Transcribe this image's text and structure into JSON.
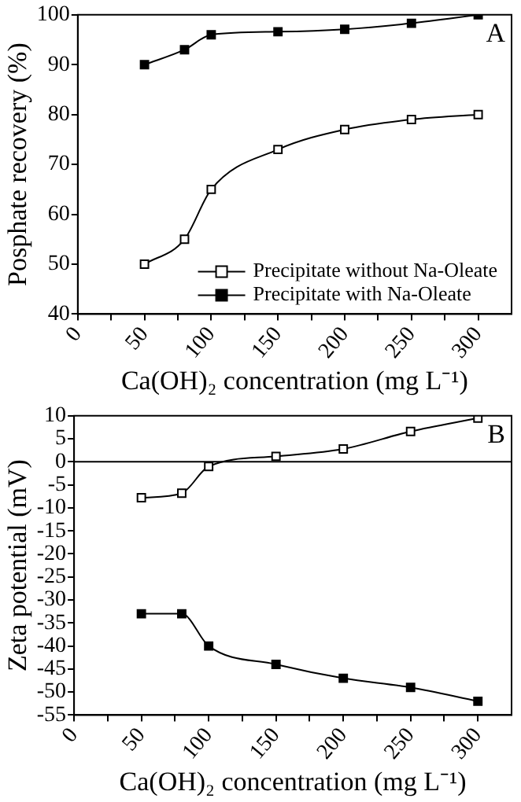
{
  "chart_data": [
    {
      "type": "line",
      "xlabel": "Ca(OH)₂ concentration (mg L⁻¹)",
      "ylabel": "Posphate recovery (%)",
      "x": [
        50,
        80,
        100,
        150,
        200,
        250,
        300
      ],
      "series": [
        {
          "name": "Precipitate without Na-Oleate",
          "color": "#000000",
          "values": [
            50,
            55,
            65,
            73,
            77,
            79,
            80
          ]
        },
        {
          "name": "Precipitate with Na-Oleate",
          "color": "#000000",
          "values": [
            90,
            93,
            96,
            96.6,
            97.1,
            98.3,
            100
          ]
        }
      ],
      "xlim": [
        0,
        325
      ],
      "xticks": [
        0,
        {
          "value": 25,
          "label": null
        },
        50,
        {
          "value": 75,
          "label": null
        },
        100,
        {
          "value": 125,
          "label": null
        },
        150,
        {
          "value": 175,
          "label": null
        },
        200,
        {
          "value": 225,
          "label": null
        },
        250,
        {
          "value": 275,
          "label": null
        },
        300
      ],
      "ylim": [
        40,
        100
      ],
      "yticks": [
        40,
        50,
        60,
        70,
        80,
        90,
        100
      ],
      "grid": false,
      "legend": "bottom right",
      "marker": "square",
      "line_style": "solid",
      "annotations": [
        "A"
      ]
    },
    {
      "type": "line",
      "xlabel": "Ca(OH)₂ concentration (mg L⁻¹)",
      "ylabel": "Zeta potential (mV)",
      "x": [
        50,
        80,
        100,
        150,
        200,
        250,
        300
      ],
      "series": [
        {
          "color": "#000000",
          "values": [
            -7.8,
            -6.8,
            -1,
            1.2,
            2.8,
            6.6,
            9.5
          ]
        },
        {
          "color": "#000000",
          "values": [
            -33,
            -33,
            -40,
            -44,
            -47,
            -49,
            -52
          ]
        }
      ],
      "xlim": [
        0,
        325
      ],
      "xticks": [
        0,
        {
          "value": 25,
          "label": null
        },
        50,
        {
          "value": 75,
          "label": null
        },
        100,
        {
          "value": 125,
          "label": null
        },
        150,
        {
          "value": 175,
          "label": null
        },
        200,
        {
          "value": 225,
          "label": null
        },
        250,
        {
          "value": 275,
          "label": null
        },
        300
      ],
      "ylim": [
        -55,
        10
      ],
      "yticks": [
        -55,
        -50,
        -45,
        -40,
        -35,
        -30,
        -25,
        -20,
        -15,
        -10,
        -5,
        0,
        5,
        10
      ],
      "grid": false,
      "legend": false,
      "marker": "square",
      "line_style": "solid",
      "ref_lines": [
        {
          "axis": "y",
          "value": 0,
          "color": "#000000"
        }
      ],
      "annotations": [
        "B"
      ]
    }
  ]
}
